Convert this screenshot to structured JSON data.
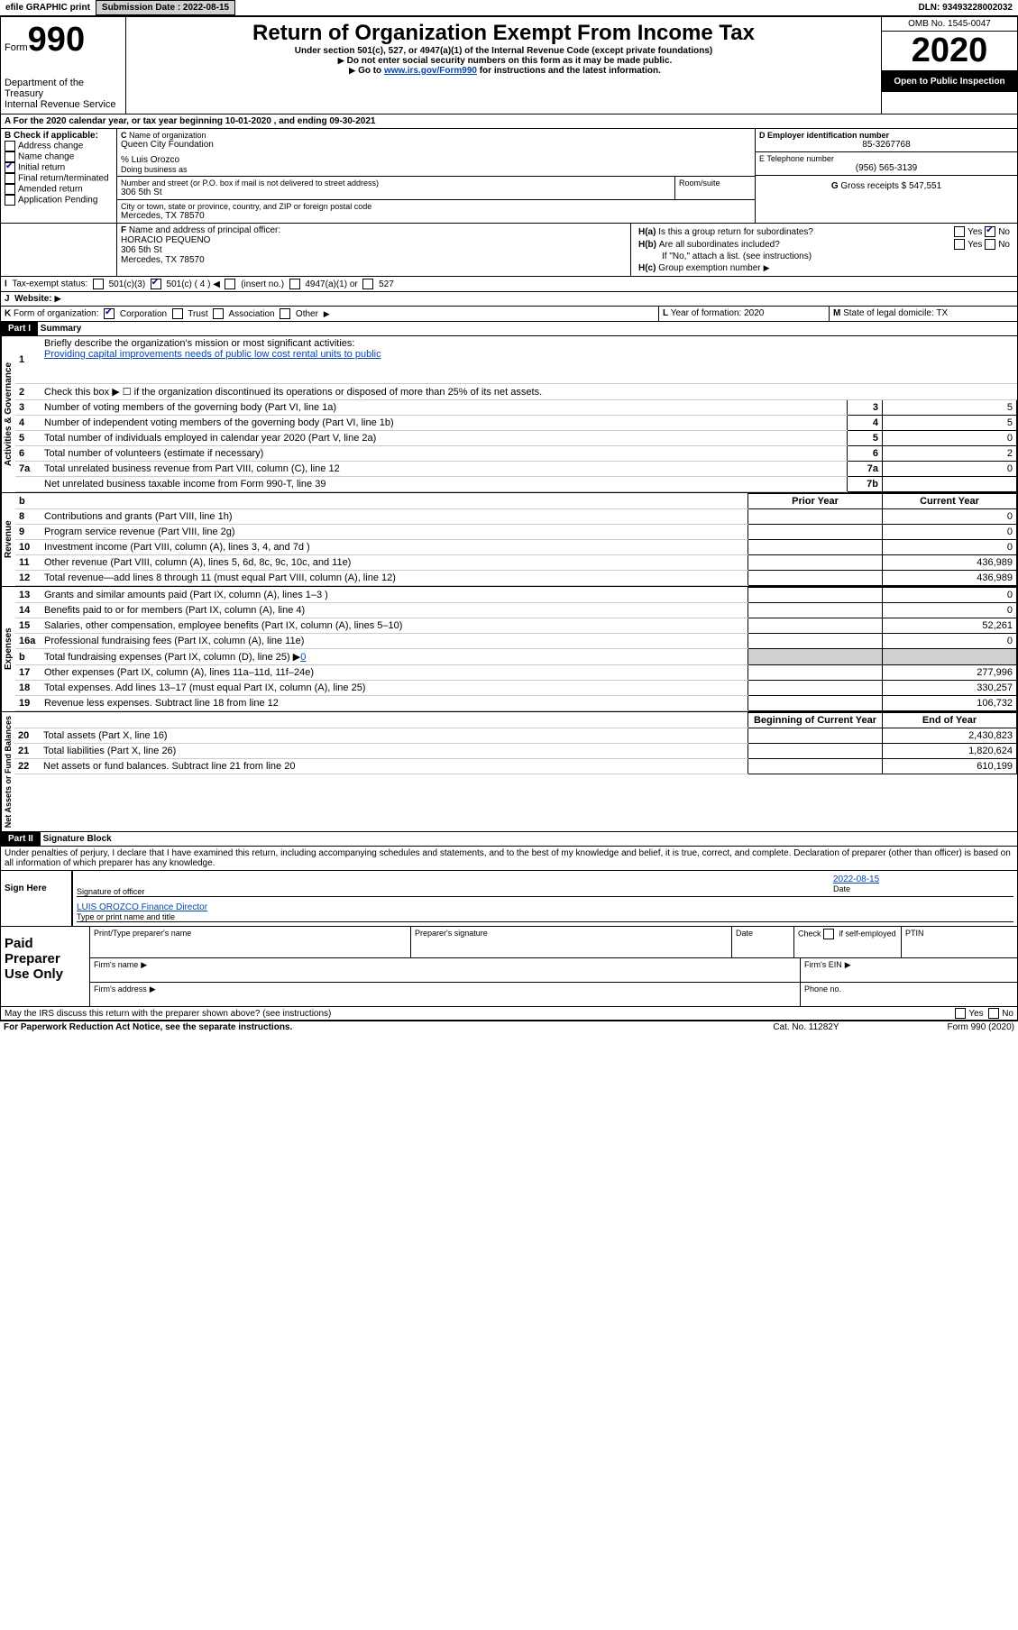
{
  "topbar": {
    "efile": "efile GRAPHIC print",
    "submission_label": "Submission Date : 2022-08-15",
    "dln": "DLN: 93493228002032"
  },
  "header": {
    "form_prefix": "Form",
    "form_num": "990",
    "dept": "Department of the Treasury\nInternal Revenue Service",
    "title": "Return of Organization Exempt From Income Tax",
    "subtitle": "Under section 501(c), 527, or 4947(a)(1) of the Internal Revenue Code (except private foundations)",
    "note1": "Do not enter social security numbers on this form as it may be made public.",
    "note2_pre": "Go to ",
    "note2_link": "www.irs.gov/Form990",
    "note2_post": " for instructions and the latest information.",
    "omb": "OMB No. 1545-0047",
    "year": "2020",
    "inspect": "Open to Public Inspection"
  },
  "A": {
    "text": "For the 2020 calendar year, or tax year beginning 10-01-2020     , and ending 09-30-2021"
  },
  "B": {
    "label": "Check if applicable:",
    "items": [
      "Address change",
      "Name change",
      "Initial return",
      "Final return/terminated",
      "Amended return",
      "Application Pending"
    ],
    "checked": [
      false,
      false,
      true,
      false,
      false,
      false
    ]
  },
  "C": {
    "label": "Name of organization",
    "name": "Queen City Foundation",
    "care_of": "% Luis Orozco",
    "dba_label": "Doing business as",
    "dba": "",
    "addr_label": "Number and street (or P.O. box if mail is not delivered to street address)",
    "room_label": "Room/suite",
    "addr": "306 5th St",
    "city_label": "City or town, state or province, country, and ZIP or foreign postal code",
    "city": "Mercedes, TX  78570"
  },
  "D": {
    "label": "Employer identification number",
    "value": "85-3267768"
  },
  "E": {
    "label": "Telephone number",
    "value": "(956) 565-3139"
  },
  "G": {
    "label": "Gross receipts $",
    "value": "547,551"
  },
  "F": {
    "label": "Name and address of principal officer:",
    "name": "HORACIO PEQUENO",
    "addr1": "306 5th St",
    "addr2": "Mercedes, TX  78570"
  },
  "H": {
    "a": "Is this a group return for subordinates?",
    "a_yes": "Yes",
    "a_no": "No",
    "a_checked": "No",
    "b": "Are all subordinates included?",
    "b_yes": "Yes",
    "b_no": "No",
    "b_note": "If \"No,\" attach a list. (see instructions)",
    "c": "Group exemption number"
  },
  "I": {
    "label": "Tax-exempt status:",
    "opts": [
      "501(c)(3)",
      "501(c) ( 4 )",
      "(insert no.)",
      "4947(a)(1) or",
      "527"
    ],
    "checked_idx": 1
  },
  "J": {
    "label": "Website:"
  },
  "K": {
    "label": "Form of organization:",
    "opts": [
      "Corporation",
      "Trust",
      "Association",
      "Other"
    ],
    "checked_idx": 0
  },
  "L": {
    "label": "Year of formation:",
    "value": "2020"
  },
  "M": {
    "label": "State of legal domicile:",
    "value": "TX"
  },
  "part1": {
    "title": "Part I",
    "subtitle": "Summary"
  },
  "gov": {
    "side": "Activities & Governance",
    "l1_label": "Briefly describe the organization's mission or most significant activities:",
    "l1_text": "Providing capital improvements needs of public low cost rental units to public",
    "l2": "Check this box ▶ ☐  if the organization discontinued its operations or disposed of more than 25% of its net assets.",
    "l3": "Number of voting members of the governing body (Part VI, line 1a)",
    "l4": "Number of independent voting members of the governing body (Part VI, line 1b)",
    "l5": "Total number of individuals employed in calendar year 2020 (Part V, line 2a)",
    "l6": "Total number of volunteers (estimate if necessary)",
    "l7a": "Total unrelated business revenue from Part VIII, column (C), line 12",
    "l7b": "Net unrelated business taxable income from Form 990-T, line 39",
    "v3": "5",
    "v4": "5",
    "v5": "0",
    "v6": "2",
    "v7a": "0",
    "v7b": ""
  },
  "cols": {
    "b": "b",
    "prior": "Prior Year",
    "current": "Current Year",
    "boc": "Beginning of Current Year",
    "eoy": "End of Year"
  },
  "rev": {
    "side": "Revenue",
    "l8": "Contributions and grants (Part VIII, line 1h)",
    "v8": "0",
    "l9": "Program service revenue (Part VIII, line 2g)",
    "v9": "0",
    "l10": "Investment income (Part VIII, column (A), lines 3, 4, and 7d )",
    "v10": "0",
    "l11": "Other revenue (Part VIII, column (A), lines 5, 6d, 8c, 9c, 10c, and 11e)",
    "v11": "436,989",
    "l12": "Total revenue—add lines 8 through 11 (must equal Part VIII, column (A), line 12)",
    "v12": "436,989"
  },
  "exp": {
    "side": "Expenses",
    "l13": "Grants and similar amounts paid (Part IX, column (A), lines 1–3 )",
    "v13": "0",
    "l14": "Benefits paid to or for members (Part IX, column (A), line 4)",
    "v14": "0",
    "l15": "Salaries, other compensation, employee benefits (Part IX, column (A), lines 5–10)",
    "v15": "52,261",
    "l16a": "Professional fundraising fees (Part IX, column (A), line 11e)",
    "v16a": "0",
    "l16b_pre": "Total fundraising expenses (Part IX, column (D), line 25) ▶",
    "l16b_val": "0",
    "l17": "Other expenses (Part IX, column (A), lines 11a–11d, 11f–24e)",
    "v17": "277,996",
    "l18": "Total expenses. Add lines 13–17 (must equal Part IX, column (A), line 25)",
    "v18": "330,257",
    "l19": "Revenue less expenses. Subtract line 18 from line 12",
    "v19": "106,732"
  },
  "na": {
    "side": "Net Assets or Fund Balances",
    "l20": "Total assets (Part X, line 16)",
    "v20": "2,430,823",
    "l21": "Total liabilities (Part X, line 26)",
    "v21": "1,820,624",
    "l22": "Net assets or fund balances. Subtract line 21 from line 20",
    "v22": "610,199"
  },
  "part2": {
    "title": "Part II",
    "subtitle": "Signature Block",
    "decl": "Under penalties of perjury, I declare that I have examined this return, including accompanying schedules and statements, and to the best of my knowledge and belief, it is true, correct, and complete. Declaration of preparer (other than officer) is based on all information of which preparer has any knowledge."
  },
  "sign": {
    "side": "Sign Here",
    "sig_label": "Signature of officer",
    "date_label": "Date",
    "date": "2022-08-15",
    "name": "LUIS OROZCO Finance Director",
    "name_label": "Type or print name and title"
  },
  "prep": {
    "side": "Paid Preparer Use Only",
    "c1": "Print/Type preparer's name",
    "c2": "Preparer's signature",
    "c3": "Date",
    "c4_pre": "Check",
    "c4": "if self-employed",
    "c5": "PTIN",
    "firm_name": "Firm's name",
    "firm_ein": "Firm's EIN",
    "firm_addr": "Firm's address",
    "phone": "Phone no."
  },
  "footer": {
    "discuss": "May the IRS discuss this return with the preparer shown above? (see instructions)",
    "yes": "Yes",
    "no": "No",
    "pra": "For Paperwork Reduction Act Notice, see the separate instructions.",
    "cat": "Cat. No. 11282Y",
    "form": "Form 990 (2020)"
  }
}
